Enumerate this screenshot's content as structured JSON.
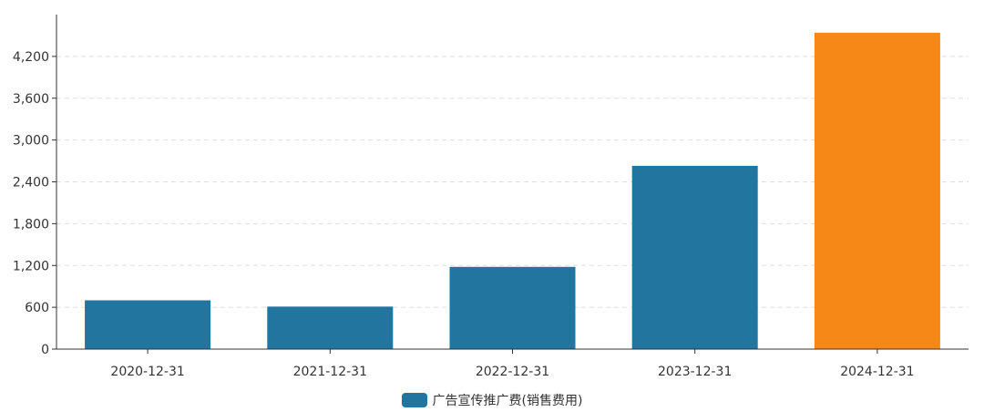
{
  "chart_data": {
    "type": "bar",
    "categories": [
      "2020-12-31",
      "2021-12-31",
      "2022-12-31",
      "2023-12-31",
      "2024-12-31"
    ],
    "series": [
      {
        "name": "广告宣传推广费(销售费用)",
        "values": [
          700,
          610,
          1180,
          2630,
          4540
        ],
        "colors": [
          "#21759f",
          "#21759f",
          "#21759f",
          "#21759f",
          "#f68818"
        ]
      }
    ],
    "title": "",
    "xlabel": "",
    "ylabel": "",
    "ylim": [
      0,
      4800
    ],
    "yticks": [
      0,
      600,
      1200,
      1800,
      2400,
      3000,
      3600,
      4200
    ],
    "ytick_labels": [
      "0",
      "600",
      "1,200",
      "1,800",
      "2,400",
      "3,000",
      "3,600",
      "4,200"
    ],
    "grid": true,
    "legend_position": "bottom-center"
  },
  "legend": {
    "label": "广告宣传推广费(销售费用)",
    "color": "#21759f"
  }
}
